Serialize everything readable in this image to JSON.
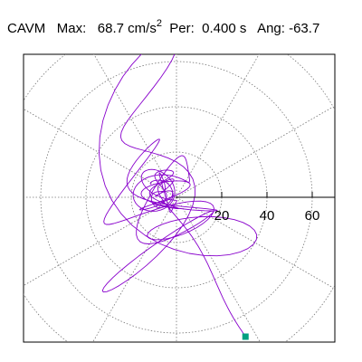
{
  "header": {
    "station": "CAVM",
    "max_label": "Max:",
    "max_value": "68.7",
    "max_unit": "cm/s",
    "max_unit_exp": "2",
    "period_label": "Per:",
    "period_value": "0.400",
    "period_unit": "s",
    "angle_label": "Ang:",
    "angle_value": "-63.7"
  },
  "chart_data": {
    "type": "line",
    "subtype": "polar-particle-motion",
    "title": "CAVM   Max:   68.7 cm/s2  Per:  0.400 s   Ang: -63.7",
    "radial_ticks": [
      20,
      40,
      60
    ],
    "tick_labels": [
      "20",
      "40",
      "60"
    ],
    "rmax": 80,
    "angular_gridlines_deg": [
      0,
      30,
      60,
      90,
      120,
      150,
      180,
      210,
      240,
      270,
      300,
      330
    ],
    "grid": true,
    "end_point": {
      "x": 30.5,
      "y": -61.6,
      "marker": "square"
    },
    "colors": {
      "trace": "#8800cc",
      "end_marker": "#00a080",
      "grid": "#777777",
      "axis": "#000000",
      "frame": "#000000"
    },
    "trace_seed": 12345,
    "trace_samples": 650
  }
}
